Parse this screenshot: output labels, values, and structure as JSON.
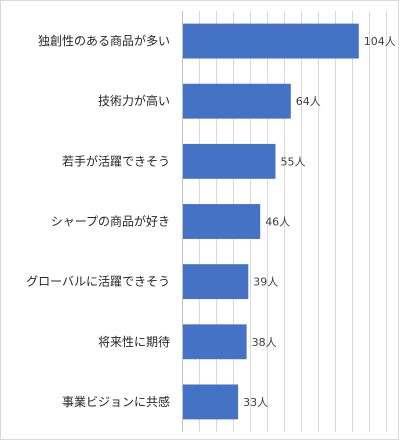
{
  "chart_data": {
    "type": "bar",
    "orientation": "horizontal",
    "categories": [
      "独創性のある商品が多い",
      "技術力が高い",
      "若手が活躍できそう",
      "シャープの商品が好き",
      "グローバルに活躍できそう",
      "将来性に期待",
      "事業ビジョンに共感"
    ],
    "values": [
      104,
      64,
      55,
      46,
      39,
      38,
      33
    ],
    "value_labels": [
      "104人",
      "64人",
      "55人",
      "46人",
      "39人",
      "38人",
      "33人"
    ],
    "unit": "人",
    "xlim": [
      0,
      120
    ],
    "grid": true,
    "legend": "none",
    "bar_color": "#4472c4",
    "grid_color": "#d9d9d9"
  }
}
